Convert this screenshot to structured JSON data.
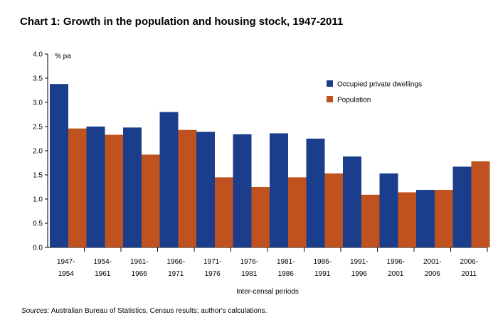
{
  "chart_data": {
    "type": "bar",
    "title": "Chart 1:  Growth in the population and housing stock, 1947-2011",
    "ylabel": "% pa",
    "xlabel": "Inter-censal periods",
    "ylim": [
      0,
      4
    ],
    "yticks": [
      "0.0",
      "0.5",
      "1.0",
      "1.5",
      "2.0",
      "2.5",
      "3.0",
      "3.5",
      "4.0"
    ],
    "grid": false,
    "legend_position": "top-right",
    "categories": [
      [
        "1947-",
        "1954"
      ],
      [
        "1954-",
        "1961"
      ],
      [
        "1961-",
        "1966"
      ],
      [
        "1966-",
        "1971"
      ],
      [
        "1971-",
        "1976"
      ],
      [
        "1976-",
        "1981"
      ],
      [
        "1981-",
        "1986"
      ],
      [
        "1986-",
        "1991"
      ],
      [
        "1991-",
        "1996"
      ],
      [
        "1996-",
        "2001"
      ],
      [
        "2001-",
        "2006"
      ],
      [
        "2006-",
        "2011"
      ]
    ],
    "series": [
      {
        "name": "Occupied private dwellings",
        "color": "#1a3d8c",
        "values": [
          3.38,
          2.5,
          2.48,
          2.8,
          2.39,
          2.34,
          2.36,
          2.25,
          1.88,
          1.53,
          1.19,
          1.67
        ]
      },
      {
        "name": "Population",
        "color": "#c0521f",
        "values": [
          2.46,
          2.33,
          1.92,
          2.43,
          1.45,
          1.25,
          1.45,
          1.53,
          1.09,
          1.14,
          1.19,
          1.78
        ]
      }
    ]
  },
  "source": {
    "label": "Sources:",
    "text": " Australian Bureau of Statistics, Census results; author's calculations."
  }
}
